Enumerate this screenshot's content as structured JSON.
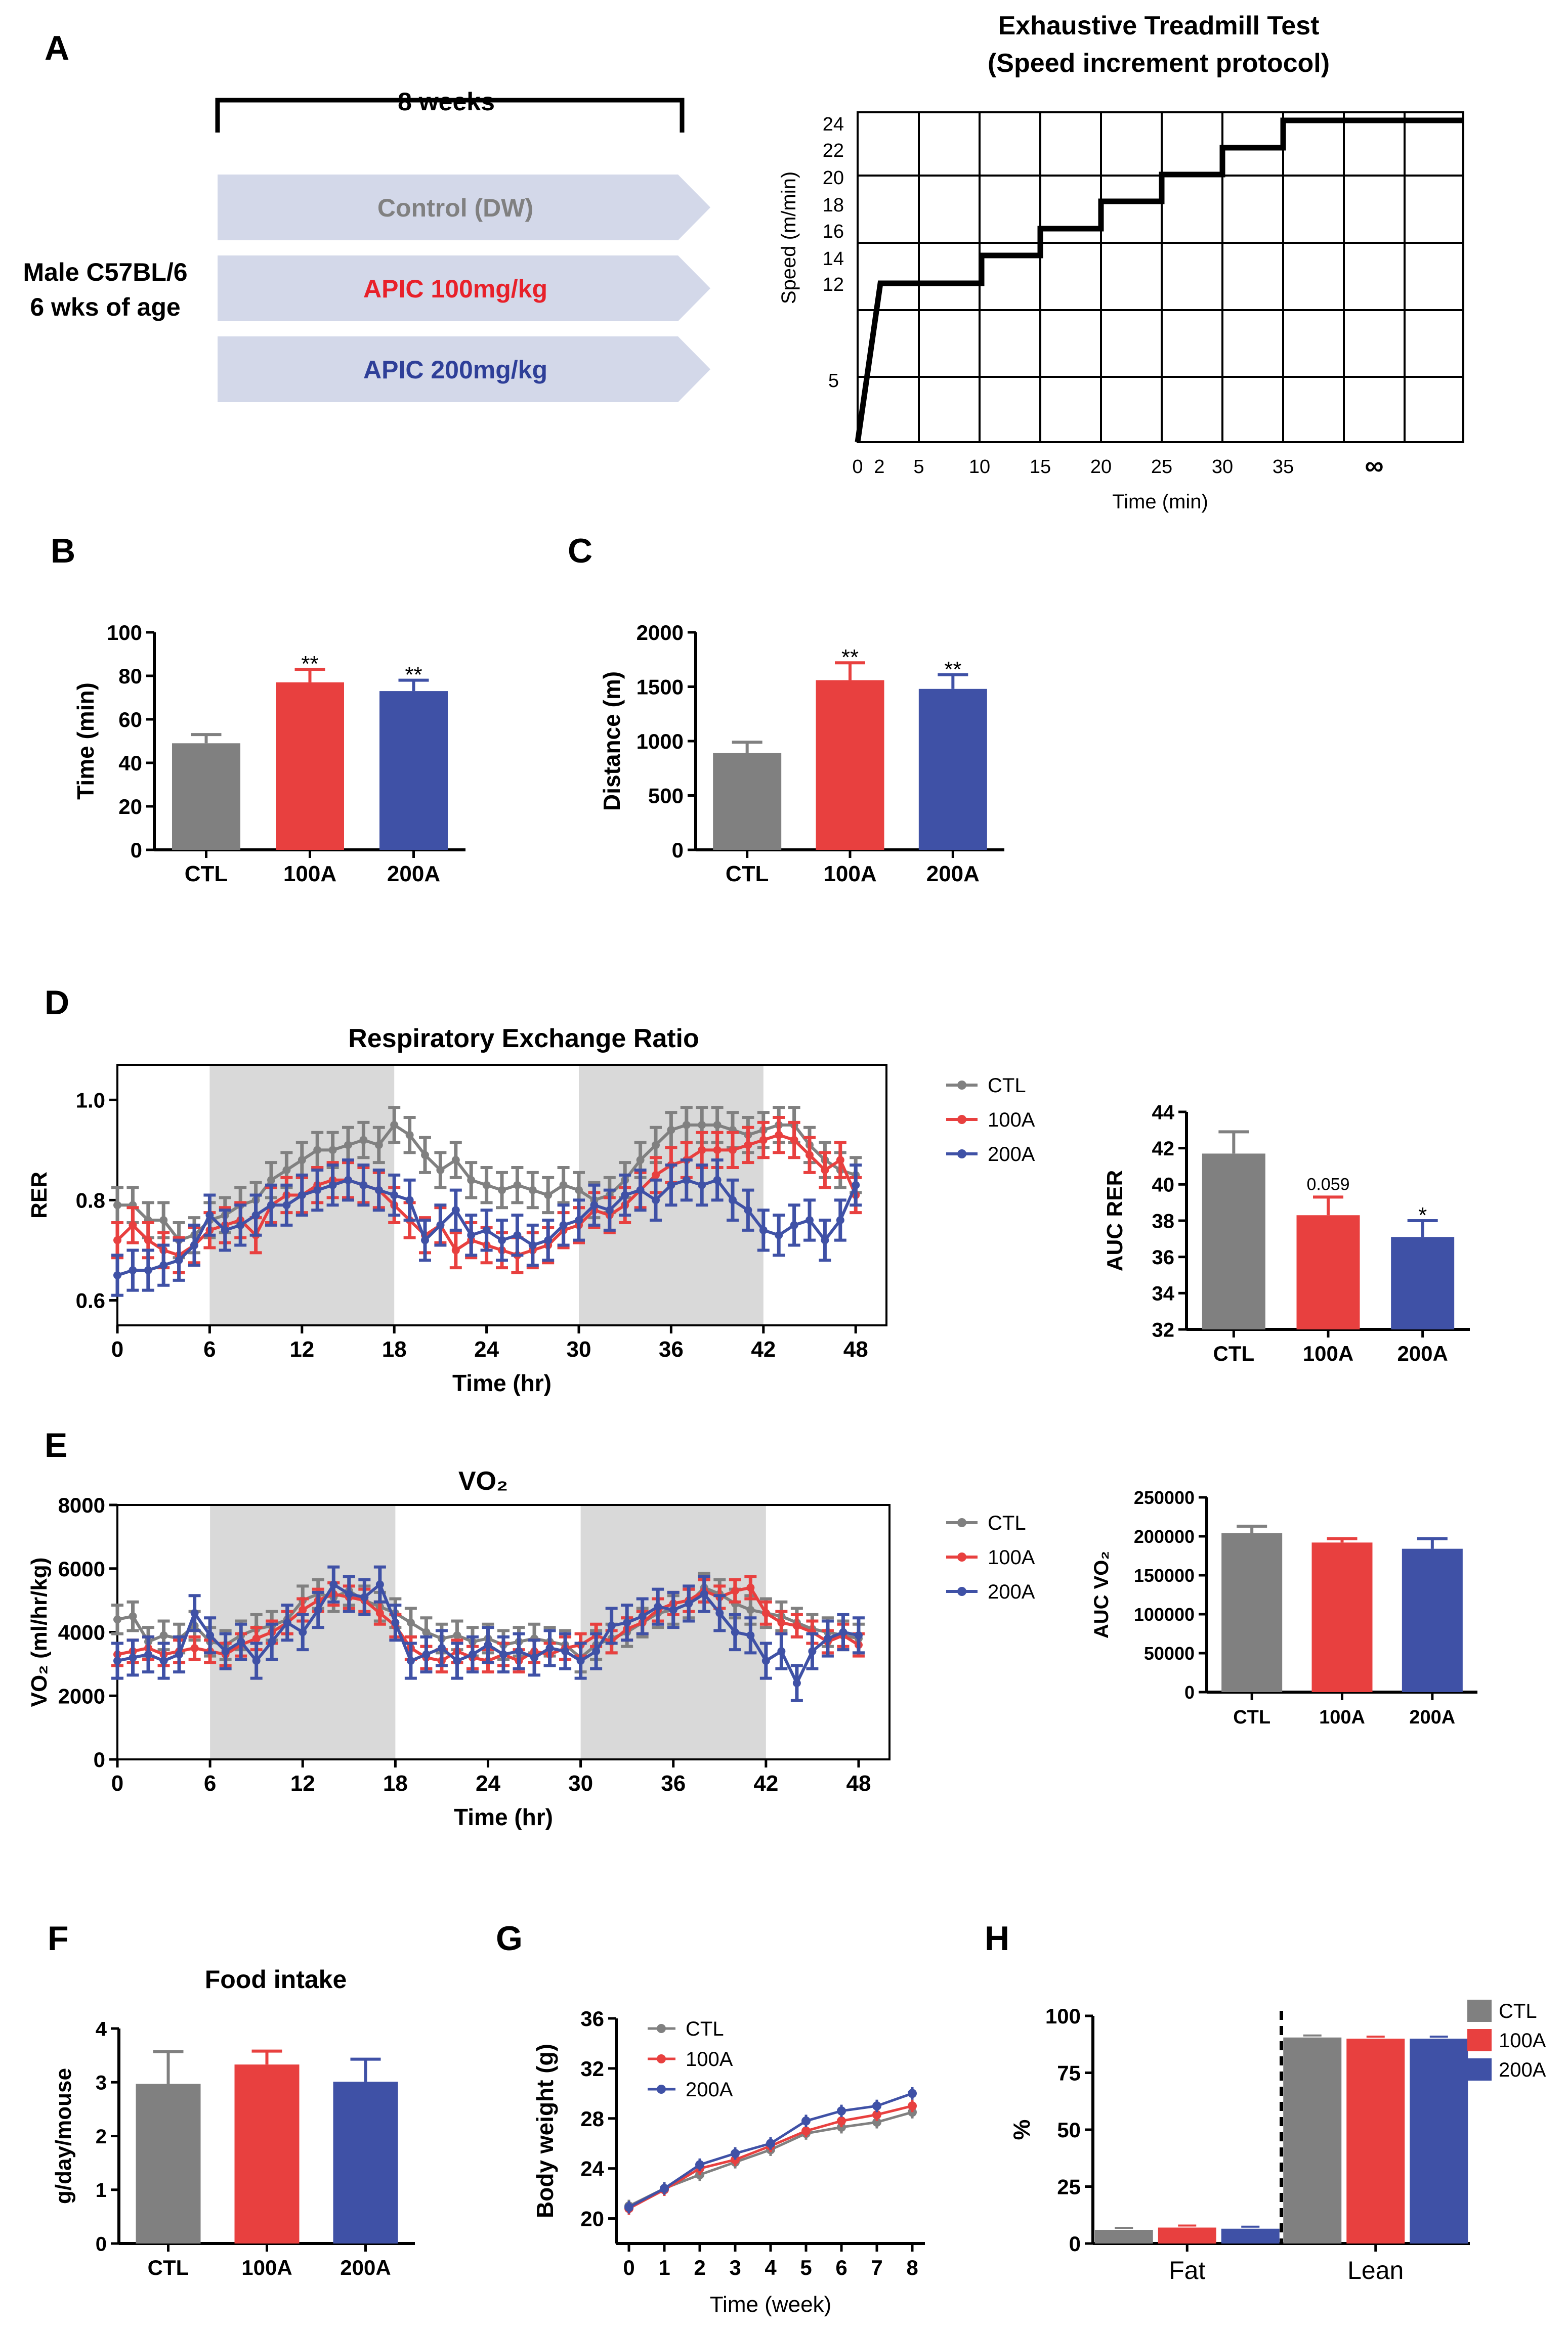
{
  "colors": {
    "ctl": "#808080",
    "a100": "#e8403f",
    "a200": "#3f51a6",
    "arrow": "#d3d8e9",
    "shade": "#d9d9d9",
    "ctl_text": "#808080",
    "a100_text": "#e8212a",
    "a200_text": "#2e3f98"
  },
  "panel_letters": {
    "A": "A",
    "B": "B",
    "C": "C",
    "D": "D",
    "E": "E",
    "F": "F",
    "G": "G",
    "H": "H"
  },
  "panelA": {
    "duration": "8 weeks",
    "mouse_line1": "Male C57BL/6",
    "mouse_line2": "6 wks of age",
    "groups": [
      "Control (DW)",
      "APIC 100mg/kg",
      "APIC 200mg/kg"
    ],
    "title_line1": "Exhaustive Treadmill Test",
    "title_line2": "(Speed increment  protocol)",
    "ylabel": "Speed (m/min)",
    "xlabel": "Time (min)",
    "infinity": "∞"
  },
  "chart_data": [
    {
      "id": "treadmill",
      "type": "line",
      "title": "Exhaustive Treadmill Test (Speed increment  protocol)",
      "xlabel": "Time (min)",
      "ylabel": "Speed (m/min)",
      "xticks": [
        "0",
        "2",
        "5",
        "10",
        "15",
        "20",
        "25",
        "30",
        "35"
      ],
      "yticks": [
        "5",
        "12",
        "14",
        "16",
        "18",
        "20",
        "22",
        "24"
      ],
      "x": [
        0,
        2,
        10,
        10,
        15,
        15,
        20,
        20,
        25,
        25,
        30,
        30,
        35,
        35,
        50
      ],
      "y": [
        0,
        12,
        12,
        14,
        14,
        16,
        16,
        18,
        18,
        20,
        20,
        22,
        22,
        24,
        24
      ]
    },
    {
      "id": "B",
      "type": "bar",
      "ylabel": "Time (min)",
      "ylim": [
        0,
        100
      ],
      "yticks": [
        "0",
        "20",
        "40",
        "60",
        "80",
        "100"
      ],
      "categories": [
        "CTL",
        "100A",
        "200A"
      ],
      "values": [
        49,
        77,
        73
      ],
      "errors": [
        4,
        6,
        5
      ],
      "sig": [
        "",
        "**",
        "**"
      ]
    },
    {
      "id": "C",
      "type": "bar",
      "ylabel": "Distance (m)",
      "ylim": [
        0,
        2000
      ],
      "yticks": [
        "0",
        "500",
        "1000",
        "1500",
        "2000"
      ],
      "categories": [
        "CTL",
        "100A",
        "200A"
      ],
      "values": [
        890,
        1560,
        1480
      ],
      "errors": [
        100,
        160,
        130
      ],
      "sig": [
        "",
        "**",
        "**"
      ]
    },
    {
      "id": "D",
      "type": "line",
      "title": "Respiratory Exchange Ratio",
      "xlabel": "Time (hr)",
      "ylabel": "RER",
      "xlim": [
        0,
        50
      ],
      "ylim": [
        0.55,
        1.07
      ],
      "xticks": [
        "0",
        "6",
        "12",
        "18",
        "24",
        "30",
        "36",
        "42",
        "48"
      ],
      "yticks": [
        "0.6",
        "0.8",
        "1.0"
      ],
      "shaded": [
        [
          6,
          18
        ],
        [
          30,
          42
        ]
      ],
      "legend": [
        "CTL",
        "100A",
        "200A"
      ],
      "x": [
        0,
        1,
        2,
        3,
        4,
        5,
        6,
        7,
        8,
        9,
        10,
        11,
        12,
        13,
        14,
        15,
        16,
        17,
        18,
        19,
        20,
        21,
        22,
        23,
        24,
        25,
        26,
        27,
        28,
        29,
        30,
        31,
        32,
        33,
        34,
        35,
        36,
        37,
        38,
        39,
        40,
        41,
        42,
        43,
        44,
        45,
        46,
        47,
        48
      ],
      "series": [
        {
          "name": "CTL",
          "err": 0.035,
          "values": [
            0.79,
            0.79,
            0.76,
            0.76,
            0.72,
            0.73,
            0.76,
            0.77,
            0.79,
            0.8,
            0.84,
            0.86,
            0.88,
            0.9,
            0.9,
            0.91,
            0.92,
            0.91,
            0.95,
            0.93,
            0.89,
            0.86,
            0.88,
            0.84,
            0.83,
            0.82,
            0.83,
            0.82,
            0.81,
            0.83,
            0.82,
            0.8,
            0.81,
            0.84,
            0.88,
            0.91,
            0.94,
            0.95,
            0.95,
            0.95,
            0.94,
            0.93,
            0.94,
            0.95,
            0.95,
            0.91,
            0.88,
            0.86,
            0.85
          ]
        },
        {
          "name": "100A",
          "err": 0.035,
          "values": [
            0.72,
            0.75,
            0.72,
            0.7,
            0.69,
            0.71,
            0.74,
            0.75,
            0.76,
            0.73,
            0.79,
            0.81,
            0.81,
            0.83,
            0.84,
            0.84,
            0.83,
            0.82,
            0.79,
            0.76,
            0.73,
            0.75,
            0.7,
            0.72,
            0.71,
            0.7,
            0.69,
            0.7,
            0.71,
            0.74,
            0.75,
            0.78,
            0.77,
            0.79,
            0.82,
            0.85,
            0.87,
            0.88,
            0.9,
            0.9,
            0.9,
            0.91,
            0.92,
            0.93,
            0.92,
            0.89,
            0.86,
            0.88,
            0.81
          ]
        },
        {
          "name": "200A",
          "err": 0.04,
          "values": [
            0.65,
            0.66,
            0.66,
            0.67,
            0.68,
            0.71,
            0.77,
            0.74,
            0.75,
            0.77,
            0.79,
            0.79,
            0.81,
            0.82,
            0.83,
            0.84,
            0.83,
            0.82,
            0.81,
            0.8,
            0.72,
            0.75,
            0.78,
            0.73,
            0.74,
            0.72,
            0.73,
            0.71,
            0.72,
            0.75,
            0.76,
            0.79,
            0.78,
            0.81,
            0.82,
            0.8,
            0.83,
            0.84,
            0.83,
            0.84,
            0.8,
            0.78,
            0.74,
            0.73,
            0.75,
            0.76,
            0.72,
            0.76,
            0.83
          ]
        }
      ]
    },
    {
      "id": "D_auc",
      "type": "bar",
      "ylabel": "AUC RER",
      "ylim": [
        32,
        44
      ],
      "yticks": [
        "32",
        "34",
        "36",
        "38",
        "40",
        "42",
        "44"
      ],
      "categories": [
        "CTL",
        "100A",
        "200A"
      ],
      "values": [
        41.7,
        38.3,
        37.1
      ],
      "errors": [
        1.2,
        1.0,
        0.9
      ],
      "sig": [
        "",
        "0.059",
        "*"
      ]
    },
    {
      "id": "E",
      "type": "line",
      "title": "VO₂",
      "xlabel": "Time (hr)",
      "ylabel": "VO₂ (ml/hr/kg)",
      "xlim": [
        0,
        50
      ],
      "ylim": [
        0,
        8000
      ],
      "xticks": [
        "0",
        "6",
        "12",
        "18",
        "24",
        "30",
        "36",
        "42",
        "48"
      ],
      "yticks": [
        "0",
        "2000",
        "4000",
        "6000",
        "8000"
      ],
      "shaded": [
        [
          6,
          18
        ],
        [
          30,
          42
        ]
      ],
      "legend": [
        "CTL",
        "100A",
        "200A"
      ],
      "x": [
        0,
        1,
        2,
        3,
        4,
        5,
        6,
        7,
        8,
        9,
        10,
        11,
        12,
        13,
        14,
        15,
        16,
        17,
        18,
        19,
        20,
        21,
        22,
        23,
        24,
        25,
        26,
        27,
        28,
        29,
        30,
        31,
        32,
        33,
        34,
        35,
        36,
        37,
        38,
        39,
        40,
        41,
        42,
        43,
        44,
        45,
        46,
        47,
        48
      ],
      "series": [
        {
          "name": "CTL",
          "err": 450,
          "values": [
            4400,
            4500,
            3700,
            3900,
            3800,
            4200,
            3700,
            3600,
            3900,
            4100,
            4200,
            4400,
            5000,
            5200,
            5100,
            5300,
            5000,
            4800,
            4600,
            4300,
            4000,
            3800,
            3900,
            3700,
            3800,
            3600,
            3700,
            3800,
            3700,
            3600,
            3200,
            3600,
            3800,
            4000,
            4300,
            4600,
            4700,
            4900,
            5400,
            5200,
            4900,
            4700,
            4600,
            4500,
            4300,
            4100,
            4000,
            3900,
            3800
          ]
        },
        {
          "name": "100A",
          "err": 350,
          "values": [
            3300,
            3400,
            3500,
            3300,
            3400,
            3500,
            3400,
            3300,
            3600,
            3800,
            4000,
            4300,
            4700,
            5000,
            5200,
            5100,
            5000,
            4600,
            4200,
            3500,
            3200,
            3100,
            3400,
            3200,
            3100,
            3300,
            3100,
            3400,
            3300,
            3500,
            3600,
            3900,
            3700,
            4100,
            4300,
            4700,
            4900,
            5000,
            5300,
            5100,
            5300,
            5400,
            4600,
            4300,
            4200,
            4000,
            3700,
            3900,
            3600
          ]
        },
        {
          "name": "200A",
          "err": 550,
          "values": [
            3100,
            3200,
            3300,
            3100,
            3300,
            4600,
            3900,
            3400,
            3700,
            3100,
            3700,
            4300,
            4000,
            4700,
            5500,
            5200,
            5100,
            5500,
            4300,
            3100,
            3300,
            3500,
            3100,
            3300,
            3600,
            3300,
            3400,
            3200,
            3500,
            3400,
            3100,
            3400,
            4200,
            4300,
            4500,
            4800,
            4700,
            4900,
            5200,
            4600,
            4000,
            3900,
            3100,
            3400,
            2400,
            3400,
            3800,
            4000,
            3900
          ]
        }
      ]
    },
    {
      "id": "E_auc",
      "type": "bar",
      "ylabel": "AUC VO₂",
      "ylim": [
        0,
        250000
      ],
      "yticks": [
        "0",
        "50000",
        "100000",
        "150000",
        "200000",
        "250000"
      ],
      "categories": [
        "CTL",
        "100A",
        "200A"
      ],
      "values": [
        204000,
        192000,
        184000
      ],
      "errors": [
        9000,
        5000,
        13000
      ],
      "sig": [
        "",
        "",
        ""
      ]
    },
    {
      "id": "F",
      "type": "bar",
      "title": "Food intake",
      "ylabel": "g/day/mouse",
      "ylim": [
        0,
        4
      ],
      "yticks": [
        "0",
        "1",
        "2",
        "3",
        "4"
      ],
      "categories": [
        "CTL",
        "100A",
        "200A"
      ],
      "values": [
        2.97,
        3.33,
        3.01
      ],
      "errors": [
        0.6,
        0.25,
        0.42
      ],
      "sig": [
        "",
        "",
        ""
      ]
    },
    {
      "id": "G",
      "type": "line",
      "xlabel": "Time (week)",
      "ylabel": "Body weight (g)",
      "xlim": [
        0,
        8
      ],
      "ylim": [
        18,
        36
      ],
      "xticks": [
        "0",
        "1",
        "2",
        "3",
        "4",
        "5",
        "6",
        "7",
        "8"
      ],
      "yticks": [
        "20",
        "24",
        "28",
        "32",
        "36"
      ],
      "legend": [
        "CTL",
        "100A",
        "200A"
      ],
      "x": [
        0,
        1,
        2,
        3,
        4,
        5,
        6,
        7,
        8
      ],
      "series": [
        {
          "name": "CTL",
          "values": [
            21.0,
            22.4,
            23.5,
            24.5,
            25.5,
            26.8,
            27.3,
            27.7,
            28.5
          ]
        },
        {
          "name": "100A",
          "values": [
            20.8,
            22.3,
            24.0,
            24.7,
            25.8,
            27.0,
            27.8,
            28.3,
            29.0
          ]
        },
        {
          "name": "200A",
          "values": [
            20.9,
            22.4,
            24.3,
            25.2,
            26.0,
            27.8,
            28.6,
            29.0,
            30.0
          ]
        }
      ]
    },
    {
      "id": "H",
      "type": "bar",
      "ylabel": "%",
      "ylim": [
        0,
        100
      ],
      "yticks": [
        "0",
        "25",
        "50",
        "75",
        "100"
      ],
      "categories": [
        "Fat",
        "Lean"
      ],
      "legend": [
        "CTL",
        "100A",
        "200A"
      ],
      "series": [
        {
          "name": "CTL",
          "values": [
            6,
            90.5
          ]
        },
        {
          "name": "100A",
          "values": [
            7,
            90
          ]
        },
        {
          "name": "200A",
          "values": [
            6.5,
            90
          ]
        }
      ]
    }
  ]
}
